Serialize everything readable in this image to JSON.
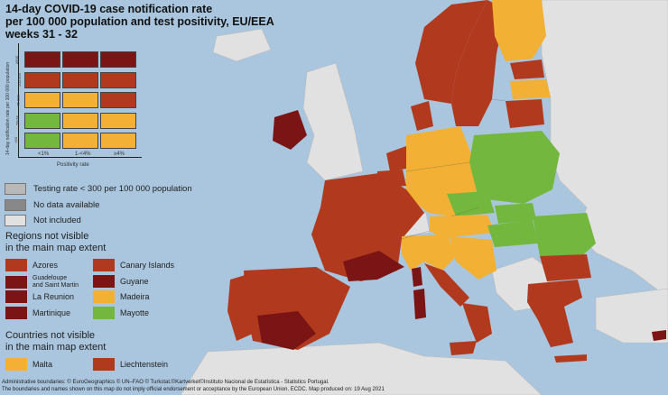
{
  "title": {
    "line1": "14-day COVID-19 case notification rate",
    "line2": "per 100 000 population and test positivity, EU/EEA",
    "line3": "weeks 31 - 32"
  },
  "colors": {
    "sea": "#a9c6de",
    "non_eu": "#e1e1e1",
    "dark_red": "#7b1515",
    "red": "#b13a1e",
    "orange": "#f2b134",
    "green": "#73b73e",
    "grey_light": "#b8b8b8",
    "grey_dark": "#888888",
    "not_included": "#e1e1e1"
  },
  "legend_matrix": {
    "y_axis_label": "14-day notification rate per 100 000 population",
    "y_ticks": [
      "≥500",
      "200-499",
      "75-200",
      "50-74",
      "<50"
    ],
    "x_ticks": [
      "<1%",
      "1-<4%",
      "≥4%"
    ],
    "x_axis_label": "Positivity rate",
    "rows": [
      [
        "dark_red",
        "dark_red",
        "dark_red"
      ],
      [
        "red",
        "red",
        "red"
      ],
      [
        "orange",
        "orange",
        "red"
      ],
      [
        "green",
        "orange",
        "orange"
      ],
      [
        "green",
        "orange",
        "orange"
      ]
    ]
  },
  "grey_legend": [
    {
      "label": "Testing rate < 300 per 100 000 population",
      "color": "#b8b8b8"
    },
    {
      "label": "No data available",
      "color": "#888888"
    },
    {
      "label": "Not included",
      "color": "#e1e1e1"
    }
  ],
  "regions_section": {
    "title_line1": "Regions not visible",
    "title_line2": "in the main map extent",
    "items": [
      {
        "label": "Azores",
        "color": "#b13a1e"
      },
      {
        "label": "Canary Islands",
        "color": "#b13a1e"
      },
      {
        "label": "Guadeloupe\nand Saint Martin",
        "color": "#7b1515"
      },
      {
        "label": "Guyane",
        "color": "#7b1515"
      },
      {
        "label": "La Reunion",
        "color": "#7b1515"
      },
      {
        "label": "Madeira",
        "color": "#f2b134"
      },
      {
        "label": "Martinique",
        "color": "#7b1515"
      },
      {
        "label": "Mayotte",
        "color": "#73b73e"
      }
    ]
  },
  "countries_section": {
    "title_line1": "Countries not visible",
    "title_line2": "in the main map extent",
    "items": [
      {
        "label": "Malta",
        "color": "#f2b134"
      },
      {
        "label": "Liechtenstein",
        "color": "#b13a1e"
      }
    ]
  },
  "footer": {
    "line1": "Administrative boundaries: © EuroGeographics © UN–FAO © Turkstat.©Kartverket©Instituto Nacional de Estatística - Statistics Portugal.",
    "line2": "The boundaries and names shown on this map do not imply official endorsement or acceptance by the European Union. ECDC. Map produced on: 19 Aug 2021"
  }
}
